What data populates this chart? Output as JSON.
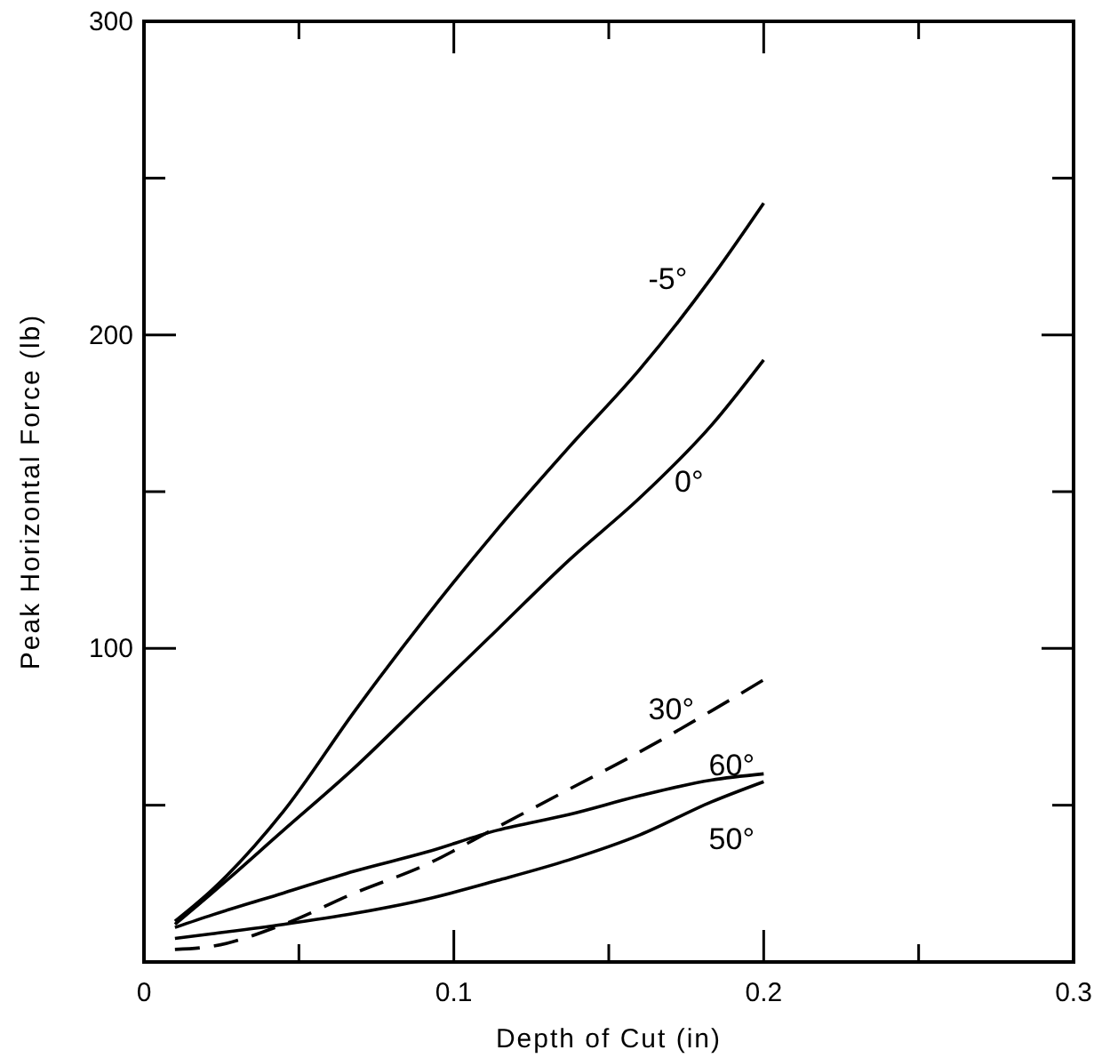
{
  "chart_data": {
    "type": "line",
    "xlabel": "Depth of Cut (in)",
    "ylabel": "Peak Horizontal Force (lb)",
    "xlim": [
      0,
      0.3
    ],
    "ylim": [
      0,
      300
    ],
    "xticks": [
      0,
      {
        "value": 0.05,
        "label": null
      },
      0.1,
      {
        "value": 0.15,
        "label": null
      },
      0.2,
      {
        "value": 0.25,
        "label": null
      },
      0.3
    ],
    "yticks": [
      {
        "value": 0,
        "label": null
      },
      {
        "value": 50,
        "label": null
      },
      100,
      {
        "value": 150,
        "label": null
      },
      200,
      {
        "value": 250,
        "label": null
      },
      300
    ],
    "grid": false,
    "marker": "none",
    "x": [
      0.01,
      0.022,
      0.045,
      0.068,
      0.091,
      0.114,
      0.137,
      0.16,
      0.183,
      0.2
    ],
    "series": [
      {
        "name": "-5°",
        "color": "#000000",
        "line_style": "solid",
        "values": [
          13,
          23,
          48,
          80,
          110,
          138,
          164,
          189,
          218,
          242
        ]
      },
      {
        "name": "0°",
        "color": "#000000",
        "line_style": "solid",
        "values": [
          12,
          22,
          42,
          62,
          84,
          106,
          128,
          148,
          171,
          192
        ]
      },
      {
        "name": "30°",
        "color": "#000000",
        "line_style": "dashed",
        "values": [
          4,
          5,
          12,
          22,
          31,
          43,
          55,
          67,
          80,
          90
        ]
      },
      {
        "name": "60°",
        "color": "#000000",
        "line_style": "solid",
        "values": [
          11,
          15,
          22,
          29,
          35,
          42,
          47,
          53,
          58,
          60
        ]
      },
      {
        "name": "50°",
        "color": "#000000",
        "line_style": "solid",
        "values": [
          7.5,
          9,
          12,
          15.5,
          20,
          26,
          32.5,
          40.5,
          51,
          57.5
        ]
      }
    ]
  }
}
